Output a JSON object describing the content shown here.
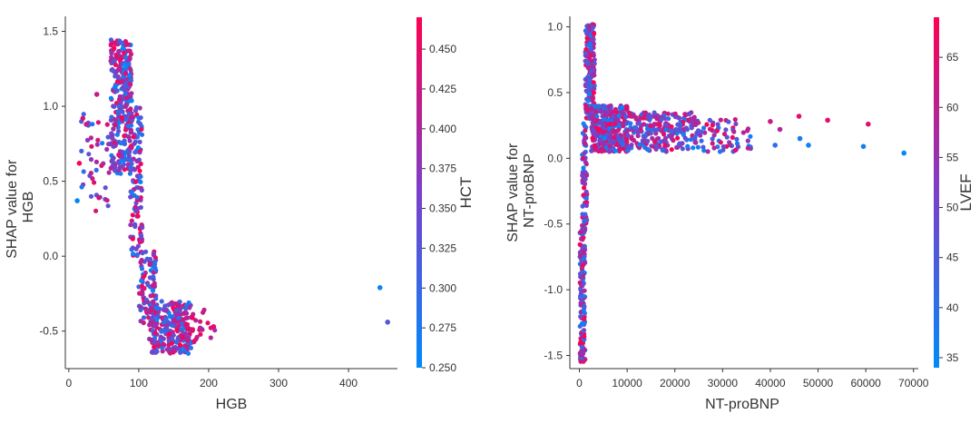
{
  "chart_data": [
    {
      "type": "scatter",
      "title": "",
      "xlabel": "HGB",
      "ylabel_lines": [
        "SHAP value for",
        "HGB"
      ],
      "xlim": [
        -5,
        470
      ],
      "ylim": [
        -0.75,
        1.6
      ],
      "xticks": [
        0,
        100,
        200,
        300,
        400
      ],
      "yticks": [
        -0.5,
        0.0,
        0.5,
        1.0,
        1.5
      ],
      "grid": false,
      "color_feature": "HCT",
      "colorbar": {
        "label": "HCT",
        "min": 0.25,
        "max": 0.47,
        "ticks": [
          "0.250",
          "0.275",
          "0.300",
          "0.325",
          "0.350",
          "0.375",
          "0.400",
          "0.425",
          "0.450"
        ]
      },
      "clusters": [
        {
          "x": [
            18,
            60
          ],
          "y": [
            0.3,
            0.95
          ],
          "c": [
            0.26,
            0.46
          ],
          "n": 40
        },
        {
          "x": [
            60,
            90
          ],
          "y": [
            0.55,
            1.45
          ],
          "c": [
            0.25,
            0.47
          ],
          "n": 320
        },
        {
          "x": [
            88,
            105
          ],
          "y": [
            0.0,
            1.0
          ],
          "c": [
            0.25,
            0.47
          ],
          "n": 110
        },
        {
          "x": [
            100,
            125
          ],
          "y": [
            -0.45,
            0.05
          ],
          "c": [
            0.25,
            0.47
          ],
          "n": 90
        },
        {
          "x": [
            115,
            175
          ],
          "y": [
            -0.65,
            -0.3
          ],
          "c": [
            0.26,
            0.47
          ],
          "n": 260
        },
        {
          "x": [
            165,
            210
          ],
          "y": [
            -0.58,
            -0.35
          ],
          "c": [
            0.38,
            0.47
          ],
          "n": 30
        }
      ],
      "points": [
        {
          "x": 12,
          "y": 0.37,
          "c": 0.255
        },
        {
          "x": 15,
          "y": 0.62,
          "c": 0.46
        },
        {
          "x": 20,
          "y": 0.92,
          "c": 0.44
        },
        {
          "x": 25,
          "y": 0.88,
          "c": 0.42
        },
        {
          "x": 40,
          "y": 1.08,
          "c": 0.42
        },
        {
          "x": 207,
          "y": -0.47,
          "c": 0.45
        },
        {
          "x": 445,
          "y": -0.21,
          "c": 0.26
        },
        {
          "x": 456,
          "y": -0.44,
          "c": 0.33
        }
      ]
    },
    {
      "type": "scatter",
      "title": "",
      "xlabel": "NT-proBNP",
      "ylabel_lines": [
        "SHAP value for",
        "NT-proBNP"
      ],
      "xlim": [
        -2000,
        71000
      ],
      "ylim": [
        -1.6,
        1.08
      ],
      "xticks": [
        0,
        10000,
        20000,
        30000,
        40000,
        50000,
        60000,
        70000
      ],
      "yticks": [
        -1.5,
        -1.0,
        -0.5,
        0.0,
        0.5,
        1.0
      ],
      "grid": false,
      "color_feature": "LVEF",
      "colorbar": {
        "label": "LVEF",
        "min": 34,
        "max": 69,
        "ticks": [
          "35",
          "40",
          "45",
          "50",
          "55",
          "60",
          "65"
        ]
      },
      "clusters": [
        {
          "x": [
            100,
            1200
          ],
          "y": [
            -1.55,
            -0.5
          ],
          "c": [
            34,
            69
          ],
          "n": 150
        },
        {
          "x": [
            600,
            1600
          ],
          "y": [
            -0.5,
            0.3
          ],
          "c": [
            35,
            68
          ],
          "n": 60
        },
        {
          "x": [
            1200,
            3200
          ],
          "y": [
            0.3,
            1.02
          ],
          "c": [
            35,
            69
          ],
          "n": 180
        },
        {
          "x": [
            2500,
            10000
          ],
          "y": [
            0.05,
            0.4
          ],
          "c": [
            34,
            69
          ],
          "n": 320
        },
        {
          "x": [
            10000,
            25000
          ],
          "y": [
            0.05,
            0.35
          ],
          "c": [
            34,
            69
          ],
          "n": 240
        },
        {
          "x": [
            25000,
            36000
          ],
          "y": [
            0.05,
            0.3
          ],
          "c": [
            34,
            69
          ],
          "n": 60
        }
      ],
      "points": [
        {
          "x": 40000,
          "y": 0.28,
          "c": 62
        },
        {
          "x": 41000,
          "y": 0.1,
          "c": 40
        },
        {
          "x": 42000,
          "y": 0.22,
          "c": 58
        },
        {
          "x": 46000,
          "y": 0.32,
          "c": 65
        },
        {
          "x": 46200,
          "y": 0.15,
          "c": 38
        },
        {
          "x": 48000,
          "y": 0.1,
          "c": 36
        },
        {
          "x": 52000,
          "y": 0.29,
          "c": 66
        },
        {
          "x": 59500,
          "y": 0.09,
          "c": 37
        },
        {
          "x": 60500,
          "y": 0.26,
          "c": 64
        },
        {
          "x": 68000,
          "y": 0.04,
          "c": 35
        }
      ]
    }
  ]
}
